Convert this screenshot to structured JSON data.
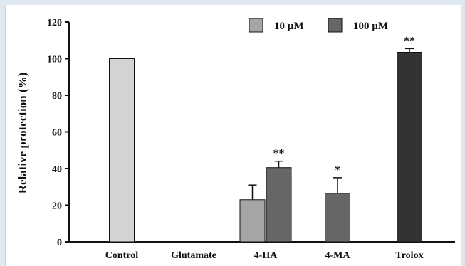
{
  "chart_data": {
    "type": "bar",
    "title": "",
    "xlabel": "",
    "ylabel": "Relative protection (%)",
    "ylim": [
      0,
      120
    ],
    "yticks": [
      0,
      20,
      40,
      60,
      80,
      100,
      120
    ],
    "categories": [
      "Control",
      "Glutamate",
      "4-HA",
      "4-MA",
      "Trolox"
    ],
    "legend": {
      "placement": "top-right",
      "entries": [
        {
          "label": "10  µM",
          "color": "#a6a6a6"
        },
        {
          "label": "100  µM",
          "color": "#666666"
        }
      ]
    },
    "bars": [
      {
        "category": "Control",
        "value": 100,
        "error": 0,
        "color": "#d3d3d3",
        "slot": "single",
        "sig": ""
      },
      {
        "category": "Glutamate",
        "value": 0,
        "error": 0,
        "color": "#a6a6a6",
        "slot": "single",
        "sig": ""
      },
      {
        "category": "4-HA",
        "value": 23,
        "error": 8,
        "color": "#a6a6a6",
        "slot": "left",
        "sig": ""
      },
      {
        "category": "4-HA",
        "value": 40.5,
        "error": 3.5,
        "color": "#666666",
        "slot": "right",
        "sig": "**"
      },
      {
        "category": "4-MA",
        "value": 26.5,
        "error": 8.5,
        "color": "#666666",
        "slot": "single",
        "sig": "*"
      },
      {
        "category": "Trolox",
        "value": 103.5,
        "error": 2,
        "color": "#333333",
        "slot": "single",
        "sig": "**"
      }
    ]
  }
}
